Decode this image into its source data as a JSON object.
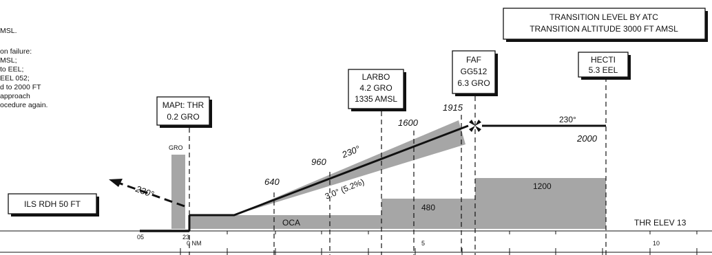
{
  "notes": {
    "lines": [
      "MSL.",
      "",
      "on failure:",
      "MSL;",
      "to EEL;",
      "EEL 052;",
      "d to 2000 FT",
      " approach",
      "ocedure again."
    ]
  },
  "transition_box": {
    "line1": "TRANSITION LEVEL BY ATC",
    "line2": "TRANSITION ALTITUDE 3000 FT AMSL"
  },
  "fixes": {
    "mapt": {
      "line1": "MAPt: THR",
      "line2": "0.2 GRO"
    },
    "larbo": {
      "line1": "LARBO",
      "line2": "4.2 GRO",
      "line3": "1335 AMSL"
    },
    "faf": {
      "line1": "FAF",
      "line2": "GG512",
      "line3": "6.3 GRO"
    },
    "hecti": {
      "line1": "HECTI",
      "line2": "5.3 EEL"
    }
  },
  "ils_box": "ILS RDH 50 FT",
  "gro_label": "GRO",
  "altitudes": [
    "640",
    "960",
    "1600",
    "1915",
    "2000"
  ],
  "tracks": {
    "missed": "230°",
    "final": "230°",
    "initial": "230°"
  },
  "glide_path": "3.0° (5.2%)",
  "oca": {
    "label": "OCA",
    "values": [
      "480",
      "1200"
    ]
  },
  "threshold_elev": "THR ELEV 13",
  "runway": {
    "left": "05",
    "right": "23"
  },
  "distance_scale": {
    "zero": "0 NM",
    "five": "5",
    "ten": "10"
  }
}
